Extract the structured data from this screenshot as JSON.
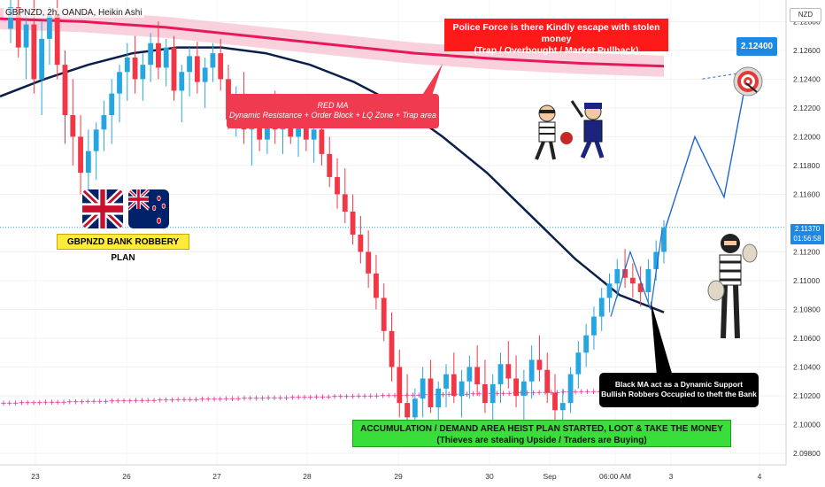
{
  "header": {
    "symbol": "GBPNZD, 2h, OANDA, Heikin Ashi"
  },
  "axis": {
    "currency": "NZD"
  },
  "price_tag": {
    "price": "2.11370",
    "countdown": "01:56:58"
  },
  "target_tag": {
    "price": "2.12400"
  },
  "annotations": {
    "police_line1": "Police Force is there Kindly escape with stolen money",
    "police_line2": "(Trap / Overbought / Market Pullback)",
    "redma_line1": "RED MA",
    "redma_line2": "Dynamic Resistance + Order Block + LQ Zone + Trap area",
    "robbery_plan": "GBPNZD BANK ROBBERY PLAN",
    "blackma_line1": "Black MA act as a Dynamic Support",
    "blackma_line2": "Bullish Robbers Occupied to theft the Bank",
    "accum_line1": "ACCUMULATION / DEMAND AREA HEIST PLAN STARTED, LOOT & TAKE THE MONEY",
    "accum_line2": "(Thieves are stealing Upside / Traders are Buying)"
  },
  "colors": {
    "bull": "#26a6e0",
    "bear": "#f23645",
    "red_ma": "#e8195a",
    "black_ma": "#0b1f4a",
    "projection": "#1e66d0",
    "dotted_ma": "#e91e8c"
  },
  "icons": [
    "uk-flag-icon",
    "nz-flag-icon",
    "target-icon",
    "thief-icon",
    "police-icon",
    "robber-icon"
  ],
  "chart_data": {
    "type": "candlestick",
    "title": "",
    "ylim": [
      2.0972,
      2.1295
    ],
    "y_ticks": [
      "2.12800",
      "2.12600",
      "2.12400",
      "2.12200",
      "2.12000",
      "2.11800",
      "2.11600",
      "2.11200",
      "2.11000",
      "2.10800",
      "2.10600",
      "2.10400",
      "2.10200",
      "2.10000",
      "2.09800"
    ],
    "x_ticks": [
      "23",
      "26",
      "27",
      "28",
      "29",
      "30",
      "Sep",
      "06:00 AM",
      "3",
      "4"
    ],
    "candles": [
      [
        2.1275,
        2.1295,
        2.1265,
        2.129
      ],
      [
        2.129,
        2.13,
        2.1255,
        2.1262
      ],
      [
        2.1262,
        2.1285,
        2.124,
        2.1278
      ],
      [
        2.1278,
        2.1295,
        2.123,
        2.124
      ],
      [
        2.124,
        2.128,
        2.1215,
        2.1268
      ],
      [
        2.1268,
        2.129,
        2.125,
        2.1285
      ],
      [
        2.1285,
        2.13,
        2.124,
        2.125
      ],
      [
        2.125,
        2.126,
        2.1195,
        2.1215
      ],
      [
        2.1215,
        2.124,
        2.118,
        2.12
      ],
      [
        2.12,
        2.1215,
        2.116,
        2.1175
      ],
      [
        2.1175,
        2.1205,
        2.114,
        2.119
      ],
      [
        2.119,
        2.121,
        2.117,
        2.1205
      ],
      [
        2.1205,
        2.1225,
        2.119,
        2.1215
      ],
      [
        2.1215,
        2.124,
        2.1195,
        2.123
      ],
      [
        2.123,
        2.125,
        2.121,
        2.1245
      ],
      [
        2.1245,
        2.1265,
        2.1225,
        2.1255
      ],
      [
        2.1255,
        2.127,
        2.123,
        2.124
      ],
      [
        2.124,
        2.1258,
        2.1225,
        2.125
      ],
      [
        2.125,
        2.1272,
        2.1238,
        2.1265
      ],
      [
        2.1265,
        2.128,
        2.124,
        2.1248
      ],
      [
        2.1248,
        2.1268,
        2.1235,
        2.1262
      ],
      [
        2.1262,
        2.127,
        2.1225,
        2.1232
      ],
      [
        2.1232,
        2.125,
        2.121,
        2.1245
      ],
      [
        2.1245,
        2.1262,
        2.1228,
        2.1256
      ],
      [
        2.1256,
        2.1266,
        2.123,
        2.1238
      ],
      [
        2.1238,
        2.1255,
        2.122,
        2.1248
      ],
      [
        2.1248,
        2.1265,
        2.1238,
        2.1258
      ],
      [
        2.1258,
        2.1268,
        2.1232,
        2.124
      ],
      [
        2.124,
        2.125,
        2.1205,
        2.1212
      ],
      [
        2.1212,
        2.1235,
        2.12,
        2.1228
      ],
      [
        2.1228,
        2.1245,
        2.1195,
        2.1205
      ],
      [
        2.1205,
        2.122,
        2.118,
        2.1212
      ],
      [
        2.1212,
        2.1228,
        2.119,
        2.1198
      ],
      [
        2.1198,
        2.1222,
        2.1188,
        2.1215
      ],
      [
        2.1215,
        2.1232,
        2.1195,
        2.1205
      ],
      [
        2.1205,
        2.122,
        2.1188,
        2.1212
      ],
      [
        2.1212,
        2.1225,
        2.1195,
        2.12
      ],
      [
        2.12,
        2.1215,
        2.1186,
        2.1208
      ],
      [
        2.1208,
        2.1222,
        2.119,
        2.1198
      ],
      [
        2.1198,
        2.1212,
        2.1182,
        2.1205
      ],
      [
        2.1205,
        2.1215,
        2.118,
        2.1188
      ],
      [
        2.1188,
        2.12,
        2.1165,
        2.1172
      ],
      [
        2.1172,
        2.1185,
        2.115,
        2.116
      ],
      [
        2.116,
        2.1178,
        2.114,
        2.1148
      ],
      [
        2.1148,
        2.116,
        2.1125,
        2.1132
      ],
      [
        2.1132,
        2.1145,
        2.1112,
        2.112
      ],
      [
        2.112,
        2.1135,
        2.1095,
        2.1105
      ],
      [
        2.1105,
        2.1118,
        2.108,
        2.1088
      ],
      [
        2.1088,
        2.1098,
        2.1058,
        2.1065
      ],
      [
        2.1065,
        2.1078,
        2.103,
        2.104
      ],
      [
        2.104,
        2.1052,
        2.1005,
        2.1015
      ],
      [
        2.1015,
        2.1035,
        2.0995,
        2.1005
      ],
      [
        2.1005,
        2.1025,
        2.0992,
        2.1018
      ],
      [
        2.1018,
        2.104,
        2.1005,
        2.1032
      ],
      [
        2.1032,
        2.1045,
        2.1008,
        2.1012
      ],
      [
        2.1012,
        2.103,
        2.1,
        2.1025
      ],
      [
        2.1025,
        2.1042,
        2.1012,
        2.1035
      ],
      [
        2.1035,
        2.105,
        2.1015,
        2.102
      ],
      [
        2.102,
        2.1038,
        2.1005,
        2.103
      ],
      [
        2.103,
        2.1048,
        2.1018,
        2.104
      ],
      [
        2.104,
        2.1055,
        2.102,
        2.1028
      ],
      [
        2.1028,
        2.1045,
        2.1008,
        2.1015
      ],
      [
        2.1015,
        2.1035,
        2.0998,
        2.1028
      ],
      [
        2.1028,
        2.105,
        2.1015,
        2.1042
      ],
      [
        2.1042,
        2.1058,
        2.1025,
        2.1032
      ],
      [
        2.1032,
        2.1048,
        2.1012,
        2.102
      ],
      [
        2.102,
        2.1038,
        2.1002,
        2.103
      ],
      [
        2.103,
        2.1055,
        2.1018,
        2.1045
      ],
      [
        2.1045,
        2.1062,
        2.103,
        2.1038
      ],
      [
        2.1038,
        2.105,
        2.1015,
        2.1022
      ],
      [
        2.1022,
        2.1035,
        2.1,
        2.101
      ],
      [
        2.101,
        2.1025,
        2.0995,
        2.1015
      ],
      [
        2.1015,
        2.104,
        2.1008,
        2.1035
      ],
      [
        2.1035,
        2.1058,
        2.1025,
        2.105
      ],
      [
        2.105,
        2.107,
        2.104,
        2.1062
      ],
      [
        2.1062,
        2.1082,
        2.1052,
        2.1075
      ],
      [
        2.1075,
        2.1095,
        2.1065,
        2.1088
      ],
      [
        2.1088,
        2.1105,
        2.1078,
        2.1098
      ],
      [
        2.1098,
        2.1115,
        2.1088,
        2.1108
      ],
      [
        2.1108,
        2.1122,
        2.1095,
        2.1102
      ],
      [
        2.1102,
        2.1112,
        2.1088,
        2.1098
      ],
      [
        2.1098,
        2.111,
        2.1082,
        2.1092
      ],
      [
        2.1092,
        2.1115,
        2.1085,
        2.1108
      ],
      [
        2.1108,
        2.1128,
        2.11,
        2.112
      ],
      [
        2.112,
        2.1142,
        2.1112,
        2.1137
      ]
    ],
    "black_ma": [
      2.1228,
      2.124,
      2.125,
      2.1258,
      2.1262,
      2.1262,
      2.1258,
      2.125,
      2.1238,
      2.1222,
      2.12,
      2.1175,
      2.1145,
      2.1115,
      2.109,
      2.1078
    ],
    "red_ma_band": [
      2.1282,
      2.128,
      2.1276,
      2.127,
      2.1264,
      2.1258,
      2.1254,
      2.1251,
      2.1249
    ],
    "dotted_ma": [
      2.1015,
      2.1016,
      2.1017,
      2.1018,
      2.1019,
      2.102,
      2.1021,
      2.1022,
      2.1023,
      2.1024
    ],
    "projection_path": [
      2.1137,
      2.12,
      2.1158,
      2.1246
    ],
    "target": 2.124
  }
}
